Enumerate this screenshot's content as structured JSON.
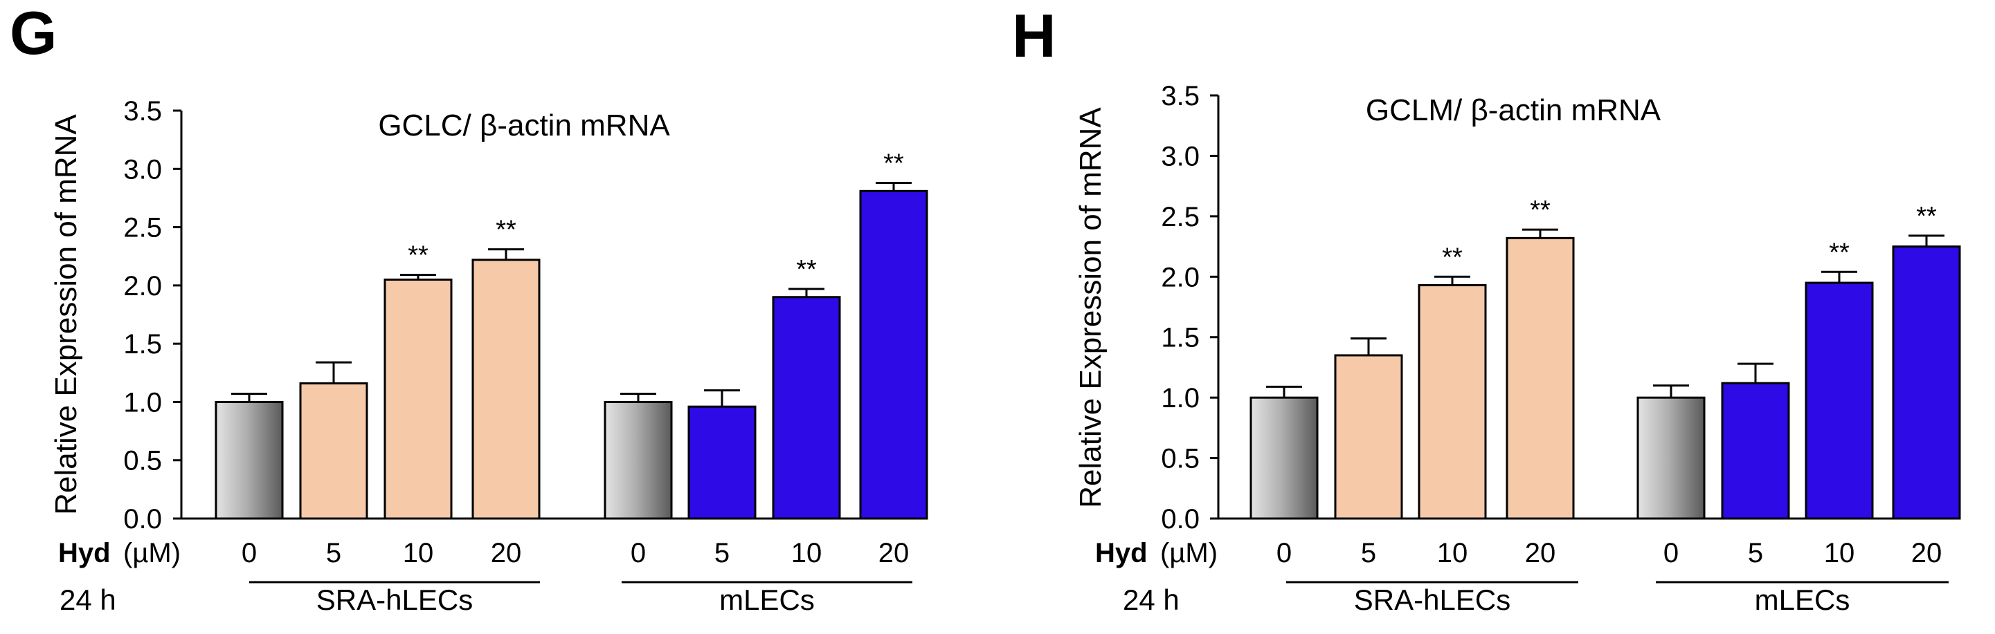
{
  "figure": {
    "row_labels": {
      "treatment_bold": "Hyd",
      "treatment_unit": "(µM)",
      "time": "24 h"
    }
  },
  "chart_data": [
    {
      "type": "bar",
      "panel": "G",
      "title": "GCLC/ β-actin mRNA",
      "ylabel": "Relative Expression of mRNA",
      "xlabel": "",
      "ylim": [
        0,
        3.5
      ],
      "yticks": [
        "0.0",
        "0.5",
        "1.0",
        "1.5",
        "2.0",
        "2.5",
        "3.0",
        "3.5"
      ],
      "groups": [
        {
          "name": "SRA-hLECs",
          "categories": [
            "0",
            "5",
            "10",
            "20"
          ],
          "values": [
            1.0,
            1.16,
            2.05,
            2.22
          ],
          "errors": [
            0.07,
            0.18,
            0.04,
            0.09
          ],
          "significance": [
            "",
            "",
            "**",
            "**"
          ],
          "colors": [
            "control-gradient",
            "#f6c9a9",
            "#f6c9a9",
            "#f6c9a9"
          ]
        },
        {
          "name": "mLECs",
          "categories": [
            "0",
            "5",
            "10",
            "20"
          ],
          "values": [
            1.0,
            0.96,
            1.9,
            2.81
          ],
          "errors": [
            0.07,
            0.14,
            0.07,
            0.07
          ],
          "significance": [
            "",
            "",
            "**",
            "**"
          ],
          "colors": [
            "control-gradient",
            "#2e0ae6",
            "#2e0ae6",
            "#2e0ae6"
          ]
        }
      ]
    },
    {
      "type": "bar",
      "panel": "H",
      "title": "GCLM/ β-actin mRNA",
      "ylabel": "Relative Expression of mRNA",
      "xlabel": "",
      "ylim": [
        0,
        3.5
      ],
      "yticks": [
        "0.0",
        "0.5",
        "1.0",
        "1.5",
        "2.0",
        "2.5",
        "3.0",
        "3.5"
      ],
      "groups": [
        {
          "name": "SRA-hLECs",
          "categories": [
            "0",
            "5",
            "10",
            "20"
          ],
          "values": [
            1.0,
            1.35,
            1.93,
            2.32
          ],
          "errors": [
            0.09,
            0.14,
            0.07,
            0.07
          ],
          "significance": [
            "",
            "",
            "**",
            "**"
          ],
          "colors": [
            "control-gradient",
            "#f6c9a9",
            "#f6c9a9",
            "#f6c9a9"
          ]
        },
        {
          "name": "mLECs",
          "categories": [
            "0",
            "5",
            "10",
            "20"
          ],
          "values": [
            1.0,
            1.12,
            1.95,
            2.25
          ],
          "errors": [
            0.1,
            0.16,
            0.09,
            0.09
          ],
          "significance": [
            "",
            "",
            "**",
            "**"
          ],
          "colors": [
            "control-gradient",
            "#2e0ae6",
            "#2e0ae6",
            "#2e0ae6"
          ]
        }
      ]
    }
  ]
}
